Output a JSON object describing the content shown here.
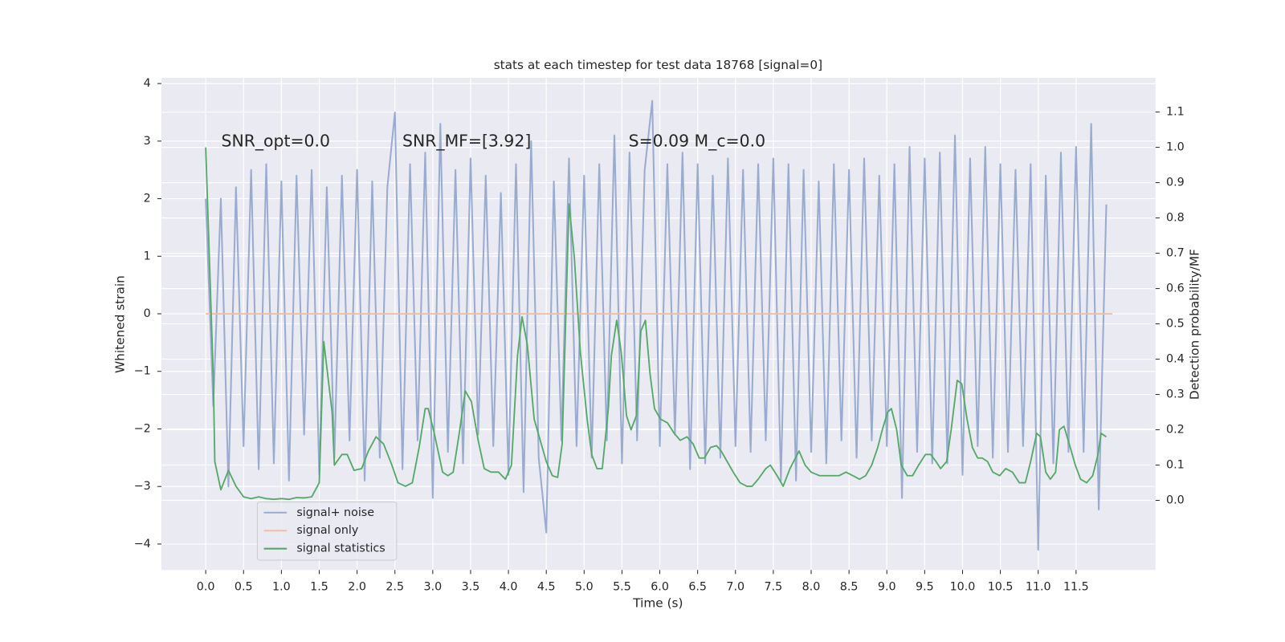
{
  "chart_data": {
    "type": "line",
    "title": "stats at each timestep for test data 18768 [signal=0]",
    "xlabel": "Time (s)",
    "ylabel": "Whitened strain",
    "y2label": "Detection probability/MF",
    "annotations": [
      "SNR_opt=0.0",
      "SNR_MF=[3.92]",
      "S=0.09   M_c=0.0"
    ],
    "xlim": [
      -0.585,
      12.55
    ],
    "ylim": [
      -4.45,
      4.1
    ],
    "y2lim": [
      -0.197,
      1.197
    ],
    "xticks": [
      {
        "value": 0,
        "label": "0.0"
      },
      {
        "value": 0.5,
        "label": "0.5"
      },
      {
        "value": 1,
        "label": "1.0"
      },
      {
        "value": 1.5,
        "label": "1.5"
      },
      {
        "value": 2,
        "label": "2.0"
      },
      {
        "value": 2.5,
        "label": "2.5"
      },
      {
        "value": 3,
        "label": "3.0"
      },
      {
        "value": 3.5,
        "label": "3.5"
      },
      {
        "value": 4,
        "label": "4.0"
      },
      {
        "value": 4.5,
        "label": "4.5"
      },
      {
        "value": 5,
        "label": "5.0"
      },
      {
        "value": 5.5,
        "label": "5.5"
      },
      {
        "value": 6,
        "label": "6.0"
      },
      {
        "value": 6.5,
        "label": "6.5"
      },
      {
        "value": 7,
        "label": "7.0"
      },
      {
        "value": 7.5,
        "label": "7.5"
      },
      {
        "value": 8,
        "label": "8.0"
      },
      {
        "value": 8.5,
        "label": "8.5"
      },
      {
        "value": 9,
        "label": "9.0"
      },
      {
        "value": 9.5,
        "label": "9.5"
      },
      {
        "value": 10,
        "label": "10.0"
      },
      {
        "value": 10.5,
        "label": "10.5"
      },
      {
        "value": 11,
        "label": "11.0"
      },
      {
        "value": 11.5,
        "label": "11.5"
      }
    ],
    "yticks": [
      {
        "value": -4,
        "label": "−4"
      },
      {
        "value": -3,
        "label": "−3"
      },
      {
        "value": -2,
        "label": "−2"
      },
      {
        "value": -1,
        "label": "−1"
      },
      0,
      1,
      2,
      3,
      4
    ],
    "y2ticks": [
      {
        "value": 0,
        "label": "0.0"
      },
      {
        "value": 0.1,
        "label": "0.1"
      },
      {
        "value": 0.2,
        "label": "0.2"
      },
      {
        "value": 0.3,
        "label": "0.3"
      },
      {
        "value": 0.4,
        "label": "0.4"
      },
      {
        "value": 0.5,
        "label": "0.5"
      },
      {
        "value": 0.6,
        "label": "0.6"
      },
      {
        "value": 0.7,
        "label": "0.7"
      },
      {
        "value": 0.8,
        "label": "0.8"
      },
      {
        "value": 0.9,
        "label": "0.9"
      },
      {
        "value": 1,
        "label": "1.0"
      },
      {
        "value": 1.1,
        "label": "1.1"
      }
    ],
    "grid": true,
    "legend": "lower left",
    "series": [
      {
        "name": "signal+ noise",
        "color": "#99acd0",
        "x": [
          0.0,
          0.1,
          0.2,
          0.3,
          0.4,
          0.5,
          0.6,
          0.7,
          0.8,
          0.9,
          1.0,
          1.1,
          1.2,
          1.3,
          1.4,
          1.5,
          1.6,
          1.7,
          1.8,
          1.9,
          2.0,
          2.1,
          2.2,
          2.3,
          2.4,
          2.5,
          2.6,
          2.7,
          2.8,
          2.9,
          3.0,
          3.1,
          3.2,
          3.3,
          3.4,
          3.5,
          3.6,
          3.7,
          3.8,
          3.9,
          4.0,
          4.1,
          4.2,
          4.3,
          4.4,
          4.5,
          4.6,
          4.7,
          4.8,
          4.9,
          5.0,
          5.1,
          5.2,
          5.3,
          5.4,
          5.5,
          5.6,
          5.7,
          5.8,
          5.9,
          6.0,
          6.1,
          6.2,
          6.3,
          6.4,
          6.5,
          6.6,
          6.7,
          6.8,
          6.9,
          7.0,
          7.1,
          7.2,
          7.3,
          7.4,
          7.5,
          7.6,
          7.7,
          7.8,
          7.9,
          8.0,
          8.1,
          8.2,
          8.3,
          8.4,
          8.5,
          8.6,
          8.7,
          8.8,
          8.9,
          9.0,
          9.1,
          9.2,
          9.3,
          9.4,
          9.5,
          9.6,
          9.7,
          9.8,
          9.9,
          10.0,
          10.1,
          10.2,
          10.3,
          10.4,
          10.5,
          10.6,
          10.7,
          10.8,
          10.9,
          11.0,
          11.1,
          11.2,
          11.3,
          11.4,
          11.5,
          11.6,
          11.7,
          11.8,
          11.9
        ],
        "values": [
          2.0,
          -1.6,
          2.0,
          -3.0,
          2.2,
          -2.3,
          2.5,
          -2.7,
          2.6,
          -2.6,
          2.3,
          -2.9,
          2.4,
          -2.1,
          2.5,
          -2.8,
          2.2,
          -2.5,
          2.4,
          -2.2,
          2.5,
          -2.9,
          2.3,
          -2.5,
          2.2,
          3.5,
          -2.7,
          2.6,
          -2.2,
          2.8,
          -3.2,
          3.3,
          -2.4,
          2.5,
          -2.6,
          2.7,
          -2.1,
          2.4,
          -2.3,
          2.1,
          -2.8,
          2.6,
          -3.1,
          3.0,
          -2.5,
          -3.8,
          2.3,
          -2.2,
          2.7,
          -2.3,
          2.4,
          -2.5,
          2.6,
          -2.2,
          3.1,
          -2.6,
          2.8,
          -2.2,
          2.5,
          3.7,
          -2.3,
          2.6,
          -2.1,
          2.8,
          -2.7,
          2.6,
          -2.6,
          2.4,
          -2.5,
          2.7,
          -2.3,
          2.5,
          -2.4,
          2.6,
          -2.2,
          2.7,
          -2.9,
          2.6,
          -2.9,
          2.5,
          -2.4,
          2.3,
          -2.6,
          2.6,
          -2.2,
          2.5,
          -2.5,
          2.7,
          -2.2,
          2.4,
          -2.3,
          2.6,
          -3.2,
          2.9,
          -2.4,
          2.7,
          -2.6,
          2.8,
          -2.6,
          3.1,
          -2.8,
          2.7,
          -2.3,
          2.9,
          -2.5,
          2.6,
          -2.4,
          2.5,
          -2.3,
          2.6,
          -4.1,
          2.4,
          -2.6,
          2.8,
          -2.4,
          2.9,
          -2.4,
          3.3,
          -3.4,
          1.9
        ]
      },
      {
        "name": "signal only",
        "color": "#eebfa6",
        "x": [
          0.0,
          11.98
        ],
        "values": [
          0,
          0
        ]
      },
      {
        "name": "signal statistics",
        "color": "#55a868",
        "axis": "y2",
        "x": [
          0.0,
          0.1,
          0.12,
          0.2,
          0.3,
          0.4,
          0.5,
          0.6,
          0.7,
          0.8,
          0.9,
          1.0,
          1.1,
          1.2,
          1.3,
          1.4,
          1.5,
          1.56,
          1.67,
          1.7,
          1.8,
          1.87,
          1.96,
          2.06,
          2.15,
          2.25,
          2.35,
          2.46,
          2.54,
          2.64,
          2.73,
          2.82,
          2.9,
          2.94,
          3.02,
          3.13,
          3.2,
          3.27,
          3.35,
          3.43,
          3.51,
          3.6,
          3.68,
          3.77,
          3.87,
          3.96,
          4.04,
          4.12,
          4.18,
          4.25,
          4.34,
          4.42,
          4.5,
          4.58,
          4.65,
          4.71,
          4.8,
          4.87,
          4.95,
          5.04,
          5.1,
          5.17,
          5.24,
          5.32,
          5.36,
          5.43,
          5.49,
          5.56,
          5.62,
          5.69,
          5.75,
          5.81,
          5.87,
          5.93,
          6.01,
          6.1,
          6.19,
          6.27,
          6.36,
          6.44,
          6.52,
          6.59,
          6.67,
          6.75,
          6.81,
          6.89,
          6.97,
          7.06,
          7.15,
          7.22,
          7.3,
          7.4,
          7.46,
          7.55,
          7.63,
          7.72,
          7.84,
          7.92,
          8.0,
          8.11,
          8.24,
          8.37,
          8.46,
          8.55,
          8.64,
          8.72,
          8.8,
          8.88,
          8.94,
          9.01,
          9.06,
          9.13,
          9.19,
          9.27,
          9.34,
          9.42,
          9.51,
          9.58,
          9.65,
          9.71,
          9.79,
          9.85,
          9.93,
          9.99,
          10.06,
          10.13,
          10.2,
          10.26,
          10.33,
          10.4,
          10.49,
          10.57,
          10.66,
          10.75,
          10.83,
          10.9,
          10.98,
          11.03,
          11.1,
          11.16,
          11.23,
          11.28,
          11.34,
          11.41,
          11.49,
          11.56,
          11.64,
          11.72,
          11.79,
          11.83,
          11.9
        ],
        "values": [
          1.0,
          0.35,
          0.11,
          0.03,
          0.085,
          0.04,
          0.01,
          0.005,
          0.01,
          0.005,
          0.003,
          0.005,
          0.003,
          0.008,
          0.007,
          0.01,
          0.05,
          0.45,
          0.25,
          0.1,
          0.13,
          0.13,
          0.085,
          0.09,
          0.14,
          0.18,
          0.16,
          0.1,
          0.05,
          0.04,
          0.05,
          0.15,
          0.26,
          0.26,
          0.19,
          0.08,
          0.07,
          0.08,
          0.19,
          0.31,
          0.28,
          0.17,
          0.09,
          0.08,
          0.08,
          0.06,
          0.1,
          0.41,
          0.52,
          0.44,
          0.23,
          0.17,
          0.11,
          0.07,
          0.065,
          0.16,
          0.84,
          0.69,
          0.42,
          0.23,
          0.13,
          0.09,
          0.09,
          0.26,
          0.41,
          0.51,
          0.42,
          0.24,
          0.2,
          0.24,
          0.48,
          0.51,
          0.36,
          0.26,
          0.23,
          0.22,
          0.19,
          0.17,
          0.18,
          0.16,
          0.12,
          0.12,
          0.15,
          0.155,
          0.14,
          0.11,
          0.08,
          0.05,
          0.04,
          0.04,
          0.06,
          0.09,
          0.1,
          0.07,
          0.04,
          0.09,
          0.14,
          0.1,
          0.08,
          0.07,
          0.07,
          0.07,
          0.08,
          0.07,
          0.06,
          0.07,
          0.1,
          0.15,
          0.2,
          0.25,
          0.26,
          0.2,
          0.1,
          0.07,
          0.07,
          0.1,
          0.13,
          0.13,
          0.11,
          0.09,
          0.11,
          0.2,
          0.34,
          0.33,
          0.23,
          0.15,
          0.12,
          0.12,
          0.11,
          0.08,
          0.07,
          0.09,
          0.08,
          0.05,
          0.05,
          0.11,
          0.19,
          0.18,
          0.08,
          0.06,
          0.08,
          0.2,
          0.21,
          0.16,
          0.1,
          0.06,
          0.05,
          0.07,
          0.13,
          0.19,
          0.18
        ]
      }
    ]
  }
}
